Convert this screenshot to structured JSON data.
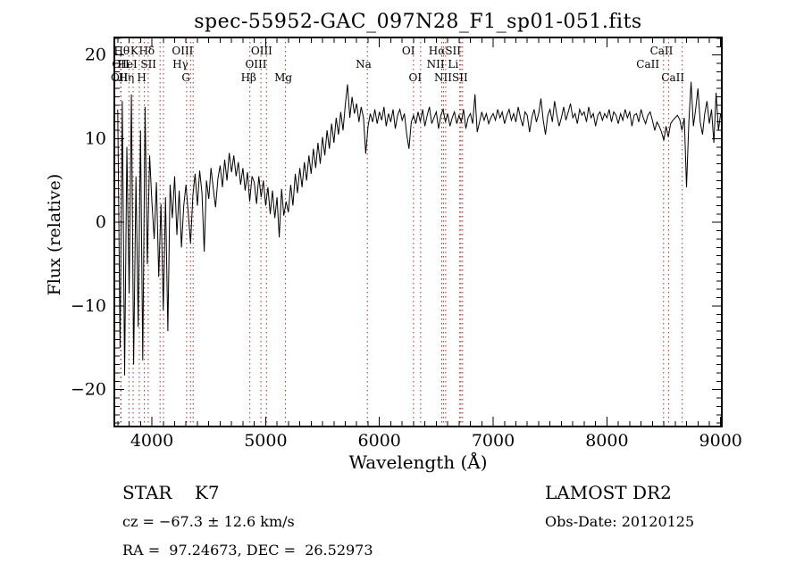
{
  "colors": {
    "background": "#ffffff",
    "axis": "#000000",
    "trace": "#000000",
    "line_marker": "#a03028"
  },
  "footer": {
    "class_line": "STAR    K7",
    "survey": "LAMOST DR2",
    "cz_line": "cz = −67.3 ± 12.6 km/s",
    "obs_date": "Obs-Date: 20120125",
    "radec_line": "RA =  97.24673, DEC =  26.52973"
  },
  "chart_data": {
    "type": "line",
    "title": "spec-55952-GAC_097N28_F1_sp01-051.fits",
    "xlabel": "Wavelength (Å)",
    "ylabel": "Flux (relative)",
    "xlim": [
      3670,
      9010
    ],
    "ylim": [
      -24.4,
      22.1
    ],
    "x_ticks": [
      4000,
      5000,
      6000,
      7000,
      8000,
      9000
    ],
    "y_ticks": [
      -20,
      -10,
      0,
      10,
      20
    ],
    "x_minor_step": 100,
    "y_minor_step": 1,
    "grid": false,
    "legend": "none",
    "label_row_y": [
      61,
      76,
      91
    ],
    "wl_start": 3700,
    "wl_step": 20,
    "flux": [
      13.5,
      -15.0,
      14.5,
      -18.3,
      9.0,
      -8.5,
      15.3,
      -17.0,
      5.5,
      -12.5,
      11.0,
      -16.5,
      13.8,
      -5.0,
      8.0,
      2.5,
      -2.0,
      4.8,
      -6.5,
      2.2,
      -10.5,
      3.0,
      -13.0,
      4.5,
      0.5,
      5.5,
      -1.5,
      3.8,
      -3.0,
      2.0,
      4.5,
      1.0,
      -2.5,
      3.2,
      5.8,
      2.0,
      6.2,
      3.5,
      -3.5,
      5.0,
      2.8,
      6.5,
      4.0,
      1.8,
      5.2,
      6.8,
      4.2,
      7.5,
      5.0,
      8.3,
      6.0,
      8.0,
      5.5,
      7.2,
      4.5,
      6.5,
      3.8,
      6.0,
      2.5,
      5.5,
      4.8,
      2.2,
      5.5,
      3.0,
      5.0,
      2.0,
      4.2,
      1.0,
      3.8,
      0.5,
      3.0,
      -1.8,
      4.0,
      0.8,
      2.5,
      1.2,
      4.5,
      2.0,
      5.8,
      3.5,
      6.5,
      4.2,
      7.2,
      5.0,
      8.0,
      5.8,
      8.8,
      6.5,
      9.5,
      7.0,
      10.2,
      8.0,
      11.0,
      8.8,
      11.8,
      9.5,
      12.5,
      10.5,
      13.2,
      11.0,
      14.0,
      16.5,
      12.5,
      15.0,
      13.0,
      14.2,
      12.0,
      13.8,
      12.5,
      8.2,
      11.5,
      13.0,
      12.0,
      13.5,
      11.8,
      13.2,
      12.2,
      13.8,
      11.5,
      13.0,
      12.0,
      13.5,
      11.2,
      12.8,
      13.5,
      12.2,
      13.0,
      10.5,
      8.8,
      12.0,
      12.8,
      11.8,
      13.2,
      12.0,
      13.5,
      11.5,
      12.8,
      13.8,
      11.8,
      12.5,
      13.2,
      11.2,
      12.8,
      13.5,
      12.0,
      13.0,
      11.5,
      12.5,
      13.2,
      11.8,
      12.8,
      12.0,
      13.5,
      11.2,
      12.5,
      13.0,
      11.8,
      15.3,
      10.8,
      12.0,
      13.2,
      12.2,
      13.0,
      11.8,
      12.5,
      13.0,
      12.2,
      13.5,
      12.5,
      13.2,
      11.8,
      12.8,
      13.5,
      12.2,
      13.0,
      12.0,
      13.8,
      12.5,
      11.5,
      13.2,
      12.8,
      10.8,
      12.5,
      13.5,
      12.0,
      13.0,
      14.8,
      12.2,
      10.5,
      12.8,
      13.5,
      12.0,
      14.5,
      12.8,
      11.5,
      12.5,
      13.8,
      12.2,
      13.2,
      14.2,
      12.5,
      13.0,
      11.8,
      13.5,
      12.8,
      13.2,
      12.0,
      13.8,
      12.5,
      13.0,
      11.5,
      12.8,
      13.2,
      12.2,
      13.0,
      12.5,
      13.5,
      12.0,
      13.2,
      12.8,
      11.8,
      13.0,
      12.2,
      13.5,
      12.5,
      13.2,
      11.5,
      12.8,
      13.0,
      12.0,
      13.5,
      12.5,
      11.8,
      12.8,
      13.2,
      12.2,
      11.0,
      12.0,
      11.5,
      10.8,
      9.8,
      11.5,
      10.2,
      11.8,
      12.2,
      12.5,
      12.8,
      12.3,
      11.0,
      12.5,
      4.2,
      12.0,
      16.8,
      11.5,
      13.5,
      16.0,
      12.0,
      10.5,
      13.0,
      14.5,
      11.8,
      13.5,
      9.5,
      15.5,
      11.0,
      13.0
    ],
    "spectral_lines": [
      {
        "name": "OII",
        "wl": 3726
      },
      {
        "name": "OII",
        "wl": 3729
      },
      {
        "name": "Hθ",
        "wl": 3798
      },
      {
        "name": "Hη",
        "wl": 3835
      },
      {
        "name": "HeI",
        "wl": 3889
      },
      {
        "name": "K",
        "wl": 3934
      },
      {
        "name": "H",
        "wl": 3968
      },
      {
        "name": "SII",
        "wl": 4072
      },
      {
        "name": "Hδ",
        "wl": 4102
      },
      {
        "name": "G",
        "wl": 4305
      },
      {
        "name": "Hγ",
        "wl": 4340
      },
      {
        "name": "OIII",
        "wl": 4363
      },
      {
        "name": "Hβ",
        "wl": 4861
      },
      {
        "name": "OIII",
        "wl": 4959
      },
      {
        "name": "OIII",
        "wl": 5007
      },
      {
        "name": "Mg",
        "wl": 5175
      },
      {
        "name": "Na",
        "wl": 5894
      },
      {
        "name": "OI",
        "wl": 6300
      },
      {
        "name": "OI",
        "wl": 6363
      },
      {
        "name": "NII",
        "wl": 6548
      },
      {
        "name": "Hα",
        "wl": 6563
      },
      {
        "name": "NII",
        "wl": 6583
      },
      {
        "name": "Li",
        "wl": 6707
      },
      {
        "name": "SII",
        "wl": 6716
      },
      {
        "name": "SII",
        "wl": 6731
      },
      {
        "name": "CaII",
        "wl": 8498
      },
      {
        "name": "CaII",
        "wl": 8542
      },
      {
        "name": "CaII",
        "wl": 8662
      }
    ],
    "line_labels": [
      {
        "text": "Hθ",
        "row": 1,
        "wl": 3735
      },
      {
        "text": "K",
        "row": 1,
        "wl": 3845
      },
      {
        "text": "Hδ",
        "row": 1,
        "wl": 3955
      },
      {
        "text": "OIII",
        "row": 1,
        "wl": 4270
      },
      {
        "text": "OIII",
        "row": 1,
        "wl": 4965
      },
      {
        "text": "OI",
        "row": 1,
        "wl": 6255
      },
      {
        "text": "HαSII",
        "row": 1,
        "wl": 6575
      },
      {
        "text": "CaII",
        "row": 1,
        "wl": 8480
      },
      {
        "text": "OII",
        "row": 2,
        "wl": 3726
      },
      {
        "text": "HeI",
        "row": 2,
        "wl": 3785
      },
      {
        "text": "SII",
        "row": 2,
        "wl": 3970
      },
      {
        "text": "Hγ",
        "row": 2,
        "wl": 4250
      },
      {
        "text": "OIII",
        "row": 2,
        "wl": 4915
      },
      {
        "text": "Na",
        "row": 2,
        "wl": 5860
      },
      {
        "text": "NII Li",
        "row": 2,
        "wl": 6555
      },
      {
        "text": "CaII",
        "row": 2,
        "wl": 8360
      },
      {
        "text": "OII",
        "row": 3,
        "wl": 3715
      },
      {
        "text": "Hη",
        "row": 3,
        "wl": 3775
      },
      {
        "text": "H",
        "row": 3,
        "wl": 3910
      },
      {
        "text": "G",
        "row": 3,
        "wl": 4300
      },
      {
        "text": "Hβ",
        "row": 3,
        "wl": 4850
      },
      {
        "text": "Mg",
        "row": 3,
        "wl": 5155
      },
      {
        "text": "OI",
        "row": 3,
        "wl": 6315
      },
      {
        "text": "NIISII",
        "row": 3,
        "wl": 6630
      },
      {
        "text": "CaII",
        "row": 3,
        "wl": 8580
      }
    ]
  }
}
